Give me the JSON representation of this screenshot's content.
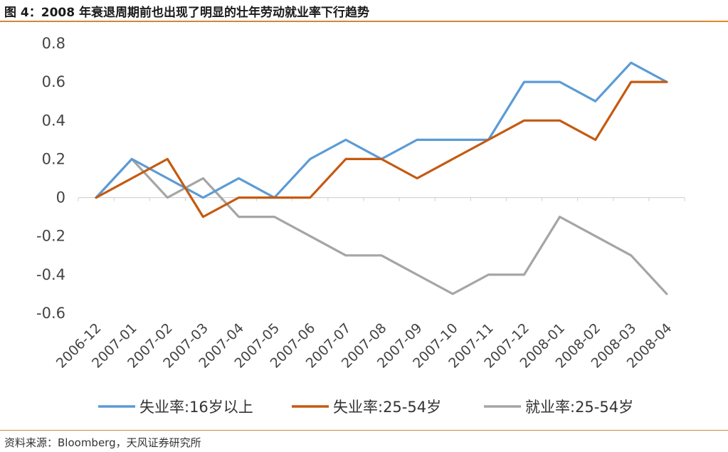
{
  "header": {
    "title": "图 4：2008 年衰退周期前也出现了明显的壮年劳动就业率下行趋势"
  },
  "footer": {
    "source": "资料来源：Bloomberg，天风证券研究所"
  },
  "colors": {
    "accent": "#c98a3a"
  },
  "chart_data": {
    "type": "line",
    "categories": [
      "2006-12",
      "2007-01",
      "2007-02",
      "2007-03",
      "2007-04",
      "2007-05",
      "2007-06",
      "2007-07",
      "2007-08",
      "2007-09",
      "2007-10",
      "2007-11",
      "2007-12",
      "2008-01",
      "2008-02",
      "2008-03",
      "2008-04"
    ],
    "series": [
      {
        "name": "失业率:16岁以上",
        "color": "#5b9bd5",
        "values": [
          0,
          0.2,
          0.1,
          0,
          0.1,
          0,
          0.2,
          0.3,
          0.2,
          0.3,
          0.3,
          0.3,
          0.6,
          0.6,
          0.5,
          0.7,
          0.6
        ]
      },
      {
        "name": "失业率:25-54岁",
        "color": "#c55a11",
        "values": [
          0,
          0.1,
          0.2,
          -0.1,
          0,
          0,
          0,
          0.2,
          0.2,
          0.1,
          0.2,
          0.3,
          0.4,
          0.4,
          0.3,
          0.6,
          0.6
        ]
      },
      {
        "name": "就业率:25-54岁",
        "color": "#a5a5a5",
        "values": [
          0,
          0.2,
          0,
          0.1,
          -0.1,
          -0.1,
          -0.2,
          -0.3,
          -0.3,
          -0.4,
          -0.5,
          -0.4,
          -0.4,
          -0.1,
          -0.2,
          -0.3,
          -0.5
        ]
      }
    ],
    "yticks": [
      "0.8",
      "0.6",
      "0.4",
      "0.2",
      "0",
      "-0.2",
      "-0.4",
      "-0.6"
    ],
    "ylim": [
      -0.6,
      0.8
    ],
    "grid": false,
    "legend_position": "bottom"
  }
}
